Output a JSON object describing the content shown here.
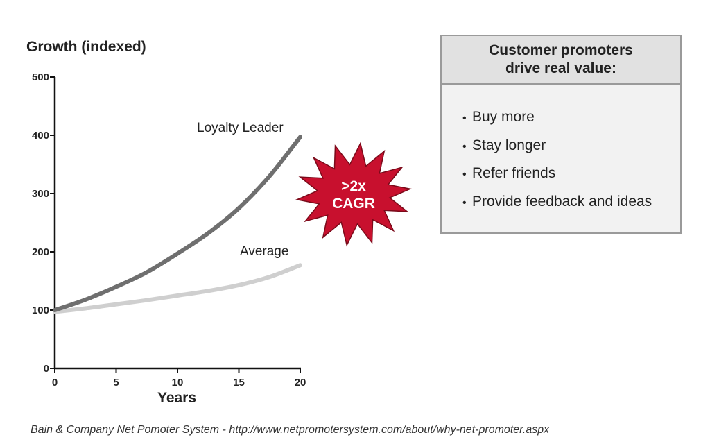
{
  "chart_data": {
    "type": "line",
    "title": "Growth (indexed)",
    "xlabel": "Years",
    "ylabel": "",
    "xlim": [
      0,
      20
    ],
    "ylim": [
      0,
      500
    ],
    "x_ticks": [
      0,
      5,
      10,
      15,
      20
    ],
    "y_ticks": [
      0,
      100,
      200,
      300,
      400,
      500
    ],
    "grid": false,
    "x": [
      0,
      2.5,
      5,
      7.5,
      10,
      12.5,
      15,
      17.5,
      20
    ],
    "series": [
      {
        "name": "Loyalty Leader",
        "values": [
          100,
          118,
          140,
          165,
          197,
          232,
          275,
          330,
          397
        ],
        "color": "#6f6f6f"
      },
      {
        "name": "Average",
        "values": [
          97,
          103,
          110,
          117,
          125,
          133,
          143,
          157,
          177
        ],
        "color": "#cfcfcf"
      }
    ],
    "annotations": [
      ">2x",
      "CAGR"
    ],
    "annotation_color": "#c8102e"
  },
  "promoters": {
    "heading_line1": "Customer promoters",
    "heading_line2": "drive real value:",
    "items": [
      "Buy more",
      "Stay longer",
      "Refer friends",
      "Provide feedback and ideas"
    ]
  },
  "footer": {
    "caption": "Bain & Company Net Pomoter System - http://www.netpromotersystem.com/about/why-net-promoter.aspx"
  }
}
